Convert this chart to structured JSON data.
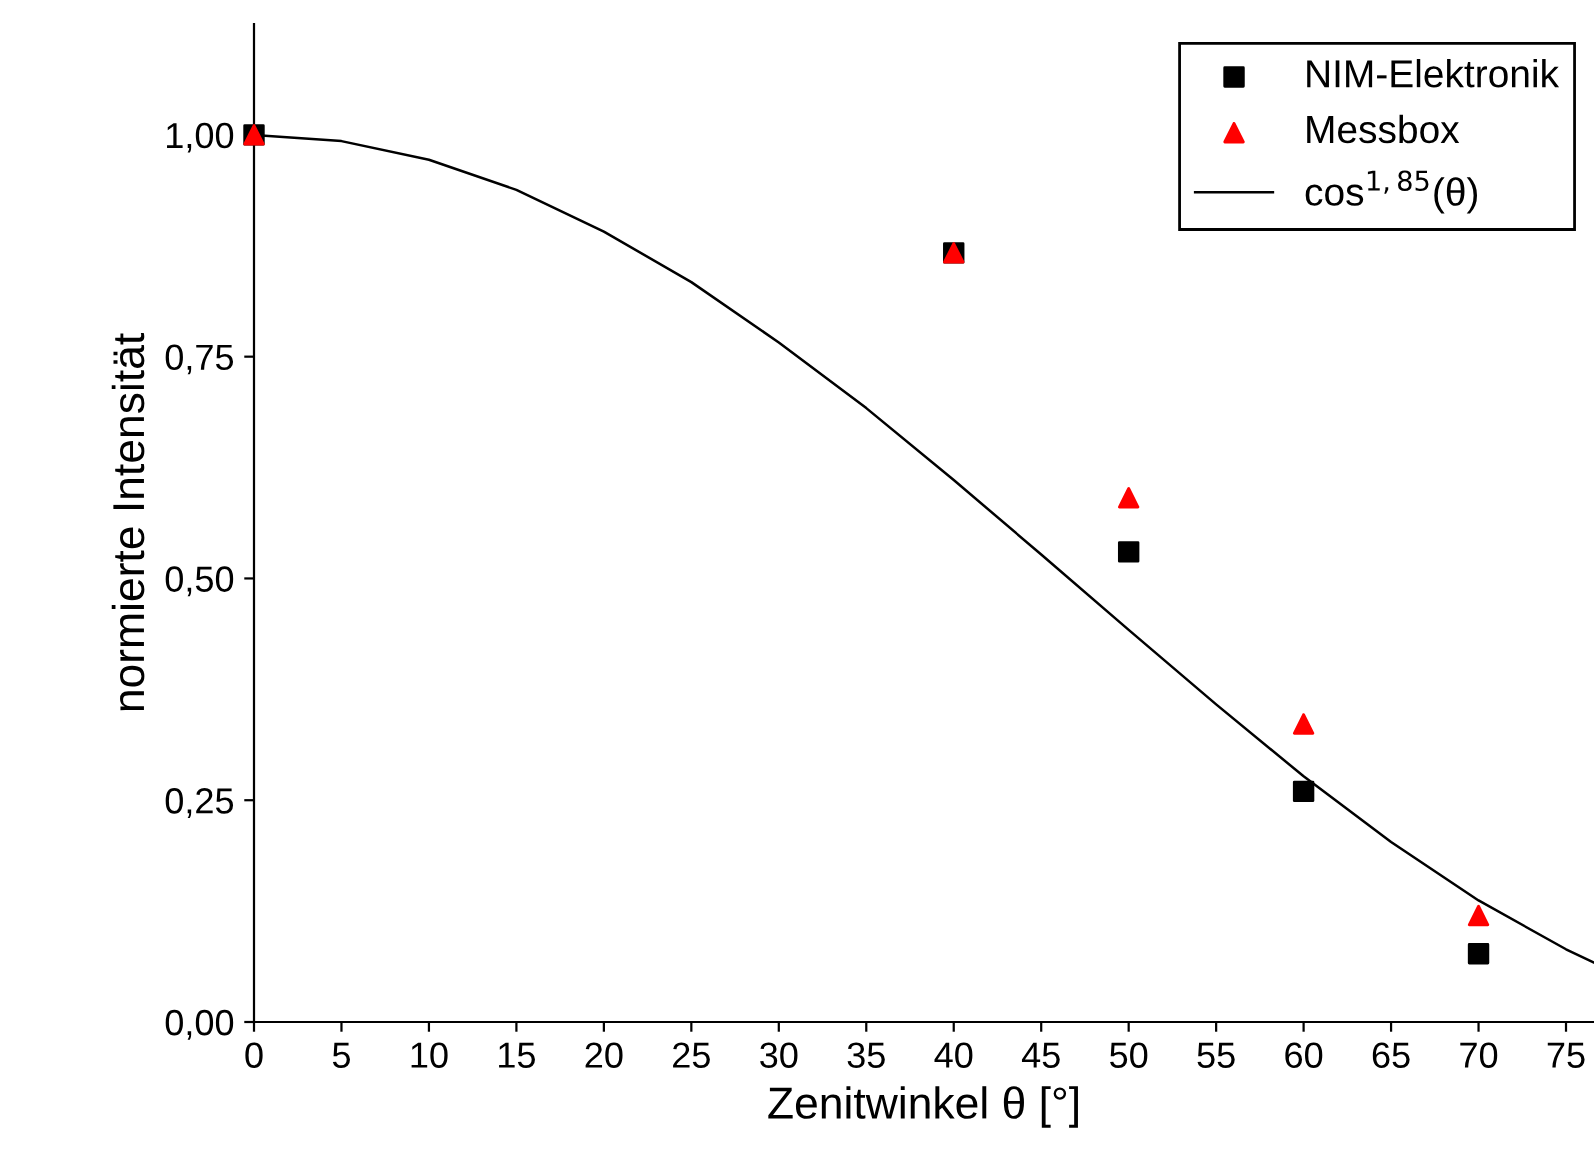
{
  "chart_data": {
    "type": "scatter",
    "xlabel": "Zenitwinkel θ [°]",
    "ylabel": "normierte Intensität",
    "xlim": [
      0,
      76.6
    ],
    "ylim": [
      0,
      1.125
    ],
    "xticks": [
      0,
      5,
      10,
      15,
      20,
      25,
      30,
      35,
      40,
      45,
      50,
      55,
      60,
      65,
      70,
      75
    ],
    "yticks": [
      {
        "value": 0,
        "label": "0,00"
      },
      {
        "value": 0.25,
        "label": "0,25"
      },
      {
        "value": 0.5,
        "label": "0,50"
      },
      {
        "value": 0.75,
        "label": "0,75"
      },
      {
        "value": 1,
        "label": "1,00"
      }
    ],
    "grid": false,
    "legend": "top right",
    "series": [
      {
        "name": "NIM-Elektronik",
        "color": "#000000",
        "marker": "square",
        "x": [
          0,
          40,
          50,
          60,
          70
        ],
        "values": [
          1.0,
          0.867,
          0.53,
          0.26,
          0.077
        ]
      },
      {
        "name": "Messbox",
        "color": "#ff0000",
        "marker": "triangle",
        "x": [
          0,
          40,
          50,
          60,
          70
        ],
        "values": [
          1.0,
          0.867,
          0.591,
          0.336,
          0.12
        ]
      },
      {
        "name": "cos$^{1,85}$(θ)",
        "color": "#000000",
        "type": "line",
        "marker": "none",
        "line_style": "solid",
        "x": [
          0,
          5,
          10,
          15,
          20,
          25,
          30,
          35,
          40,
          45,
          50,
          55,
          60,
          65,
          70,
          75,
          76.6
        ],
        "values": [
          1,
          0.993,
          0.972,
          0.938,
          0.891,
          0.834,
          0.766,
          0.692,
          0.611,
          0.527,
          0.442,
          0.358,
          0.277,
          0.203,
          0.137,
          0.082,
          0.067
        ]
      }
    ]
  }
}
